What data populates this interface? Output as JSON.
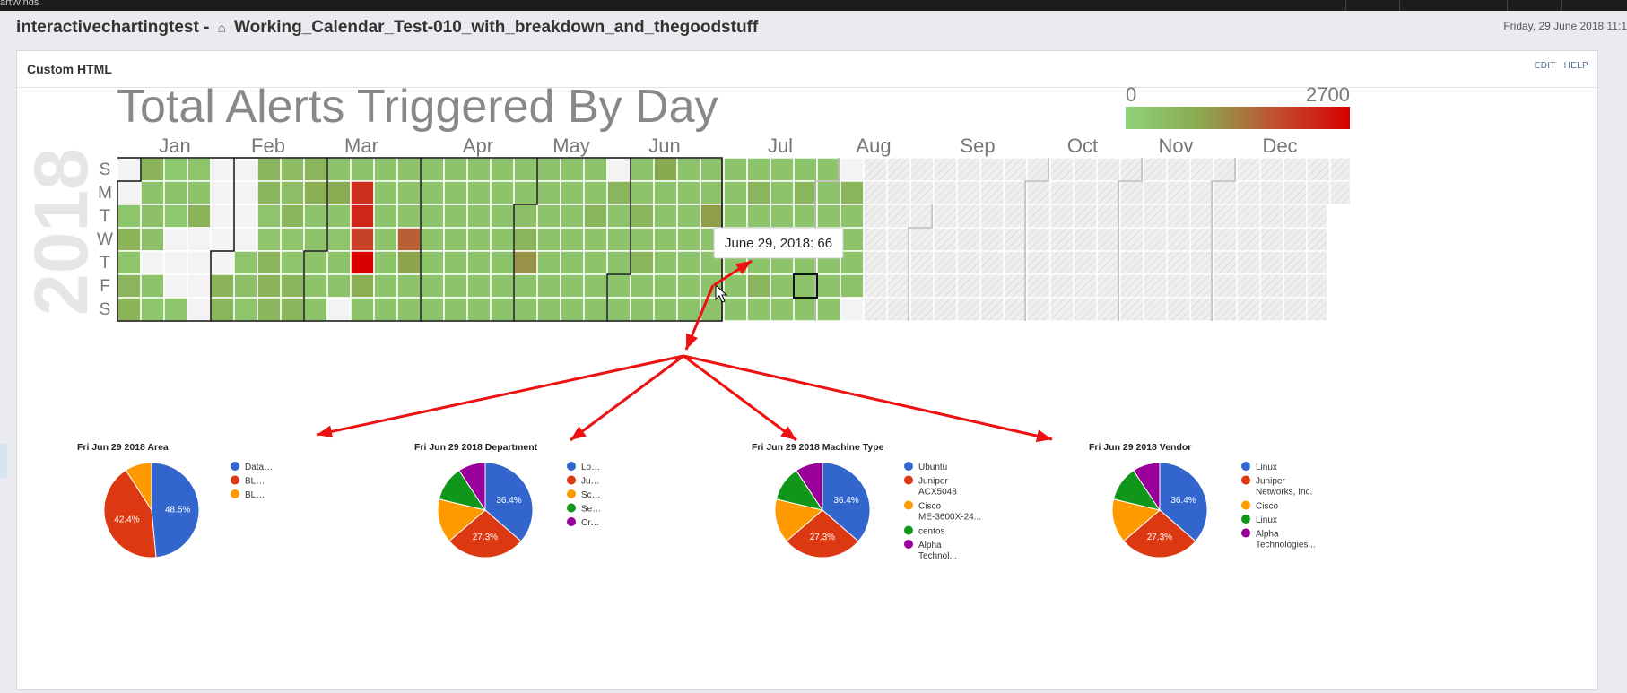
{
  "app": {
    "top_label": "artWinds",
    "app_name": "interactivechartingtest -",
    "dashboard_name": "Working_Calendar_Test-010_with_breakdown_and_thegoodstuff",
    "date": "Friday, 29 June 2018 11:1"
  },
  "panel": {
    "title": "Custom HTML",
    "edit_label": "EDIT",
    "help_label": "HELP"
  },
  "chart_data": [
    {
      "type": "heatmap",
      "title": "Total Alerts Triggered By Day",
      "year_label": "2018",
      "months": [
        "Jan",
        "Feb",
        "Mar",
        "Apr",
        "May",
        "Jun",
        "Jul",
        "Aug",
        "Sep",
        "Oct",
        "Nov",
        "Dec"
      ],
      "weekdays": [
        "S",
        "M",
        "T",
        "W",
        "T",
        "F",
        "S"
      ],
      "color_scale": {
        "min": 0,
        "max": 2700,
        "min_label": "0",
        "max_label": "2700",
        "colors": [
          "#8fd27a",
          "#8aa950",
          "#c05030",
          "#d80000"
        ]
      },
      "colors": {
        "empty": "#f3f3f3",
        "future": "#efefef"
      },
      "values_by_week": [
        [
          null,
          null,
          40,
          220,
          40,
          200,
          220
        ],
        [
          220,
          60,
          80,
          80,
          null,
          60,
          40
        ],
        [
          30,
          60,
          30,
          null,
          null,
          null,
          40
        ],
        [
          50,
          60,
          220,
          null,
          null,
          null,
          null
        ],
        [
          null,
          null,
          null,
          null,
          null,
          220,
          200
        ],
        [
          null,
          null,
          null,
          null,
          50,
          80,
          50
        ],
        [
          200,
          180,
          50,
          50,
          180,
          220,
          180
        ],
        [
          130,
          100,
          180,
          50,
          50,
          200,
          200
        ],
        [
          200,
          300,
          60,
          60,
          60,
          60,
          60
        ],
        [
          60,
          320,
          60,
          50,
          60,
          60,
          null
        ],
        [
          60,
          1800,
          1950,
          1500,
          2700,
          300,
          60
        ],
        [
          60,
          60,
          60,
          60,
          60,
          60,
          60
        ],
        [
          60,
          60,
          60,
          1100,
          400,
          60,
          60
        ],
        [
          60,
          60,
          60,
          60,
          60,
          60,
          60
        ],
        [
          60,
          60,
          60,
          60,
          60,
          60,
          60
        ],
        [
          60,
          60,
          60,
          60,
          60,
          60,
          60
        ],
        [
          60,
          60,
          60,
          60,
          60,
          60,
          60
        ],
        [
          60,
          60,
          80,
          200,
          550,
          60,
          60
        ],
        [
          60,
          60,
          60,
          60,
          60,
          60,
          60
        ],
        [
          60,
          60,
          60,
          60,
          60,
          60,
          60
        ],
        [
          60,
          60,
          200,
          60,
          60,
          60,
          60
        ],
        [
          null,
          200,
          60,
          60,
          60,
          60,
          60
        ],
        [
          60,
          60,
          200,
          60,
          200,
          60,
          60
        ],
        [
          350,
          60,
          60,
          60,
          60,
          60,
          60
        ],
        [
          60,
          60,
          60,
          60,
          60,
          60,
          60
        ],
        [
          60,
          60,
          450,
          60,
          60,
          60,
          60
        ],
        [
          60,
          60,
          60,
          60,
          60,
          60,
          60
        ],
        [
          60,
          200,
          60,
          60,
          60,
          200,
          60
        ],
        [
          60,
          60,
          60,
          60,
          60,
          60,
          60
        ],
        [
          60,
          200,
          60,
          60,
          60,
          66,
          60
        ],
        [
          60,
          60,
          60,
          60,
          60,
          60,
          60
        ],
        [
          null,
          200,
          60,
          60,
          60,
          66,
          null
        ]
      ],
      "highlighted": {
        "week": 29,
        "day": 5
      },
      "tooltip": "June 29, 2018: 66"
    },
    {
      "type": "pie",
      "title": "Fri Jun 29 2018 Area",
      "slices": [
        {
          "label": "Data…",
          "value": 48.5,
          "color": "#3366cc",
          "shown": "48.5%"
        },
        {
          "label": "BL…",
          "value": 42.4,
          "color": "#dc3912",
          "shown": "42.4%"
        },
        {
          "label": "BL…",
          "value": 9.1,
          "color": "#ff9900",
          "shown": ""
        }
      ]
    },
    {
      "type": "pie",
      "title": "Fri Jun 29 2018 Department",
      "slices": [
        {
          "label": "Lo…",
          "value": 36.4,
          "color": "#3366cc",
          "shown": "36.4%"
        },
        {
          "label": "Ju…",
          "value": 27.3,
          "color": "#dc3912",
          "shown": "27.3%"
        },
        {
          "label": "Sc…",
          "value": 15.0,
          "color": "#ff9900",
          "shown": ""
        },
        {
          "label": "Se…",
          "value": 12.0,
          "color": "#109618",
          "shown": ""
        },
        {
          "label": "Cr…",
          "value": 9.3,
          "color": "#990099",
          "shown": ""
        }
      ]
    },
    {
      "type": "pie",
      "title": "Fri Jun 29 2018 Machine Type",
      "slices": [
        {
          "label": "Ubuntu",
          "value": 36.4,
          "color": "#3366cc",
          "shown": "36.4%"
        },
        {
          "label": "Juniper ACX5048",
          "value": 27.3,
          "color": "#dc3912",
          "shown": "27.3%"
        },
        {
          "label": "Cisco ME-3600X-24...",
          "value": 15.0,
          "color": "#ff9900",
          "shown": ""
        },
        {
          "label": "centos",
          "value": 12.0,
          "color": "#109618",
          "shown": ""
        },
        {
          "label": "Alpha Technol...",
          "value": 9.3,
          "color": "#990099",
          "shown": ""
        }
      ]
    },
    {
      "type": "pie",
      "title": "Fri Jun 29 2018 Vendor",
      "slices": [
        {
          "label": "Linux",
          "value": 36.4,
          "color": "#3366cc",
          "shown": "36.4%"
        },
        {
          "label": "Juniper Networks, Inc.",
          "value": 27.3,
          "color": "#dc3912",
          "shown": "27.3%"
        },
        {
          "label": "Cisco",
          "value": 15.0,
          "color": "#ff9900",
          "shown": ""
        },
        {
          "label": "Linux",
          "value": 12.0,
          "color": "#109618",
          "shown": ""
        },
        {
          "label": "Alpha Technologies...",
          "value": 9.3,
          "color": "#990099",
          "shown": ""
        }
      ]
    }
  ],
  "annotation": {
    "arrow_color": "#ee1111"
  }
}
